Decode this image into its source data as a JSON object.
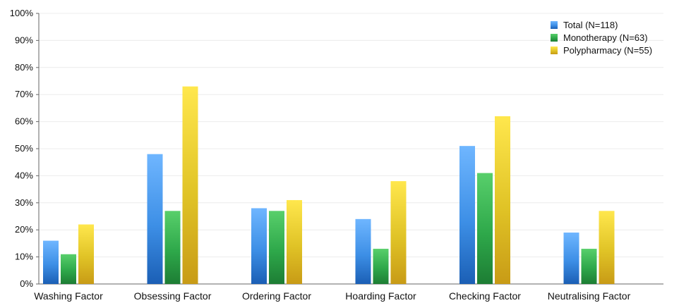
{
  "chart_data": {
    "type": "bar",
    "title": "",
    "xlabel": "",
    "ylabel": "",
    "ylim": [
      0,
      100
    ],
    "y_ticks": [
      "0%",
      "10%",
      "20%",
      "30%",
      "40%",
      "50%",
      "60%",
      "70%",
      "80%",
      "90%",
      "100%"
    ],
    "grid": true,
    "legend_position": "top-right",
    "categories": [
      "Washing Factor",
      "Obsessing Factor",
      "Ordering Factor",
      "Hoarding Factor",
      "Checking Factor",
      "Neutralising Factor"
    ],
    "series": [
      {
        "name": "Total (N=118)",
        "values": [
          16,
          48,
          28,
          24,
          51,
          19
        ],
        "color": "#3d8fe6",
        "color_light": "#6fb6ff",
        "color_dark": "#1b5fb5"
      },
      {
        "name": "Monotherapy (N=63)",
        "values": [
          11,
          27,
          27,
          13,
          41,
          13
        ],
        "color": "#2ea84a",
        "color_light": "#58cf6b",
        "color_dark": "#1d7d34"
      },
      {
        "name": "Polypharmacy (N=55)",
        "values": [
          22,
          73,
          31,
          38,
          62,
          27
        ],
        "color": "#e0c326",
        "color_light": "#ffe74d",
        "color_dark": "#c89b16"
      }
    ]
  }
}
